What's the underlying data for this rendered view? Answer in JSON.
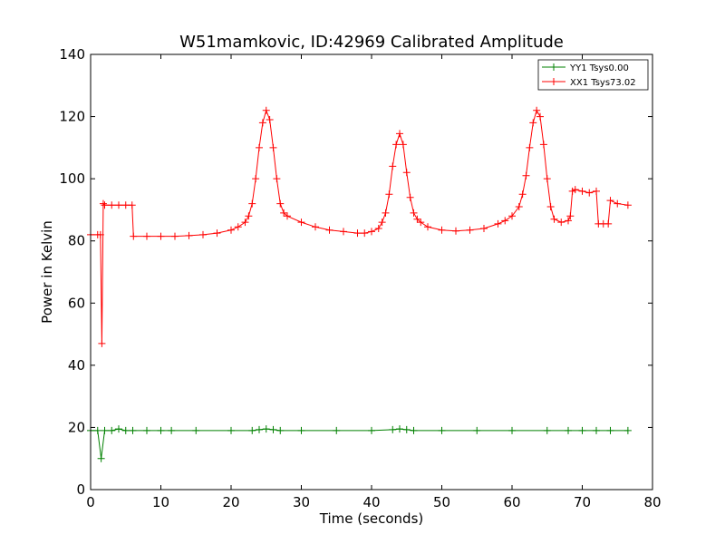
{
  "chart_data": {
    "type": "line",
    "title": "W51mamkovic, ID:42969 Calibrated Amplitude",
    "xlabel": "Time (seconds)",
    "ylabel": "Power in Kelvin",
    "xlim": [
      0,
      80
    ],
    "ylim": [
      0,
      140
    ],
    "xticks": [
      0,
      10,
      20,
      30,
      40,
      50,
      60,
      70,
      80
    ],
    "yticks": [
      0,
      20,
      40,
      60,
      80,
      100,
      120,
      140
    ],
    "xtick_labels": [
      "0",
      "10",
      "20",
      "30",
      "40",
      "50",
      "60",
      "70",
      "80"
    ],
    "ytick_labels": [
      "0",
      "20",
      "40",
      "60",
      "80",
      "100",
      "120",
      "140"
    ],
    "grid": false,
    "legend_position": "top-right",
    "marker": "+",
    "series": [
      {
        "name": "YY1 Tsys0.00",
        "color": "#008000",
        "x": [
          0,
          1,
          1.5,
          2,
          3,
          4,
          5,
          6,
          8,
          10,
          11.5,
          15,
          20,
          23,
          24,
          25,
          26,
          27,
          30,
          35,
          40,
          43,
          44,
          45,
          46,
          50,
          55,
          60,
          65,
          68,
          70,
          72,
          74,
          76.5
        ],
        "y": [
          19,
          19,
          10,
          19,
          19,
          19.5,
          19,
          19,
          19,
          19,
          19,
          19,
          19,
          19,
          19.3,
          19.5,
          19.3,
          19,
          19,
          19,
          19,
          19.3,
          19.5,
          19.3,
          19,
          19,
          19,
          19,
          19,
          19,
          19,
          19,
          19,
          19
        ]
      },
      {
        "name": "XX1 Tsys73.02",
        "color": "#ff0000",
        "x": [
          0,
          1,
          1.4,
          1.6,
          1.8,
          2,
          3,
          4,
          5,
          5.9,
          6.1,
          8,
          10,
          12,
          14,
          16,
          18,
          20,
          21,
          22,
          22.5,
          23,
          23.5,
          24,
          24.5,
          25,
          25.5,
          26,
          26.5,
          27,
          27.5,
          28,
          30,
          32,
          34,
          36,
          38,
          39,
          40,
          41,
          41.5,
          42,
          42.5,
          43,
          43.5,
          44,
          44.5,
          45,
          45.5,
          46,
          46.5,
          47,
          48,
          50,
          52,
          54,
          56,
          58,
          59,
          60,
          61,
          61.5,
          62,
          62.5,
          63,
          63.5,
          64,
          64.5,
          65,
          65.5,
          66,
          67,
          68,
          68.3,
          68.6,
          69,
          70,
          71,
          72,
          72.3,
          73,
          73.7,
          74,
          75,
          76.5
        ],
        "y": [
          82,
          82,
          82,
          47,
          92,
          91.5,
          91.5,
          91.5,
          91.5,
          91.5,
          81.5,
          81.5,
          81.5,
          81.5,
          81.7,
          82,
          82.5,
          83.5,
          84.5,
          86,
          88,
          92,
          100,
          110,
          118,
          122,
          119,
          110,
          100,
          92,
          89,
          88,
          86,
          84.5,
          83.5,
          83,
          82.5,
          82.5,
          83,
          84,
          86,
          89,
          95,
          104,
          111,
          114.5,
          111,
          102,
          94,
          89,
          87,
          86,
          84.5,
          83.5,
          83.2,
          83.5,
          84,
          85.5,
          86.5,
          88,
          91,
          95,
          101,
          110,
          118,
          122,
          120,
          111,
          100,
          91,
          87,
          86,
          86.5,
          88,
          96,
          96.5,
          96,
          95.5,
          96,
          85.5,
          85.5,
          85.5,
          93,
          92,
          91.5
        ]
      }
    ]
  }
}
